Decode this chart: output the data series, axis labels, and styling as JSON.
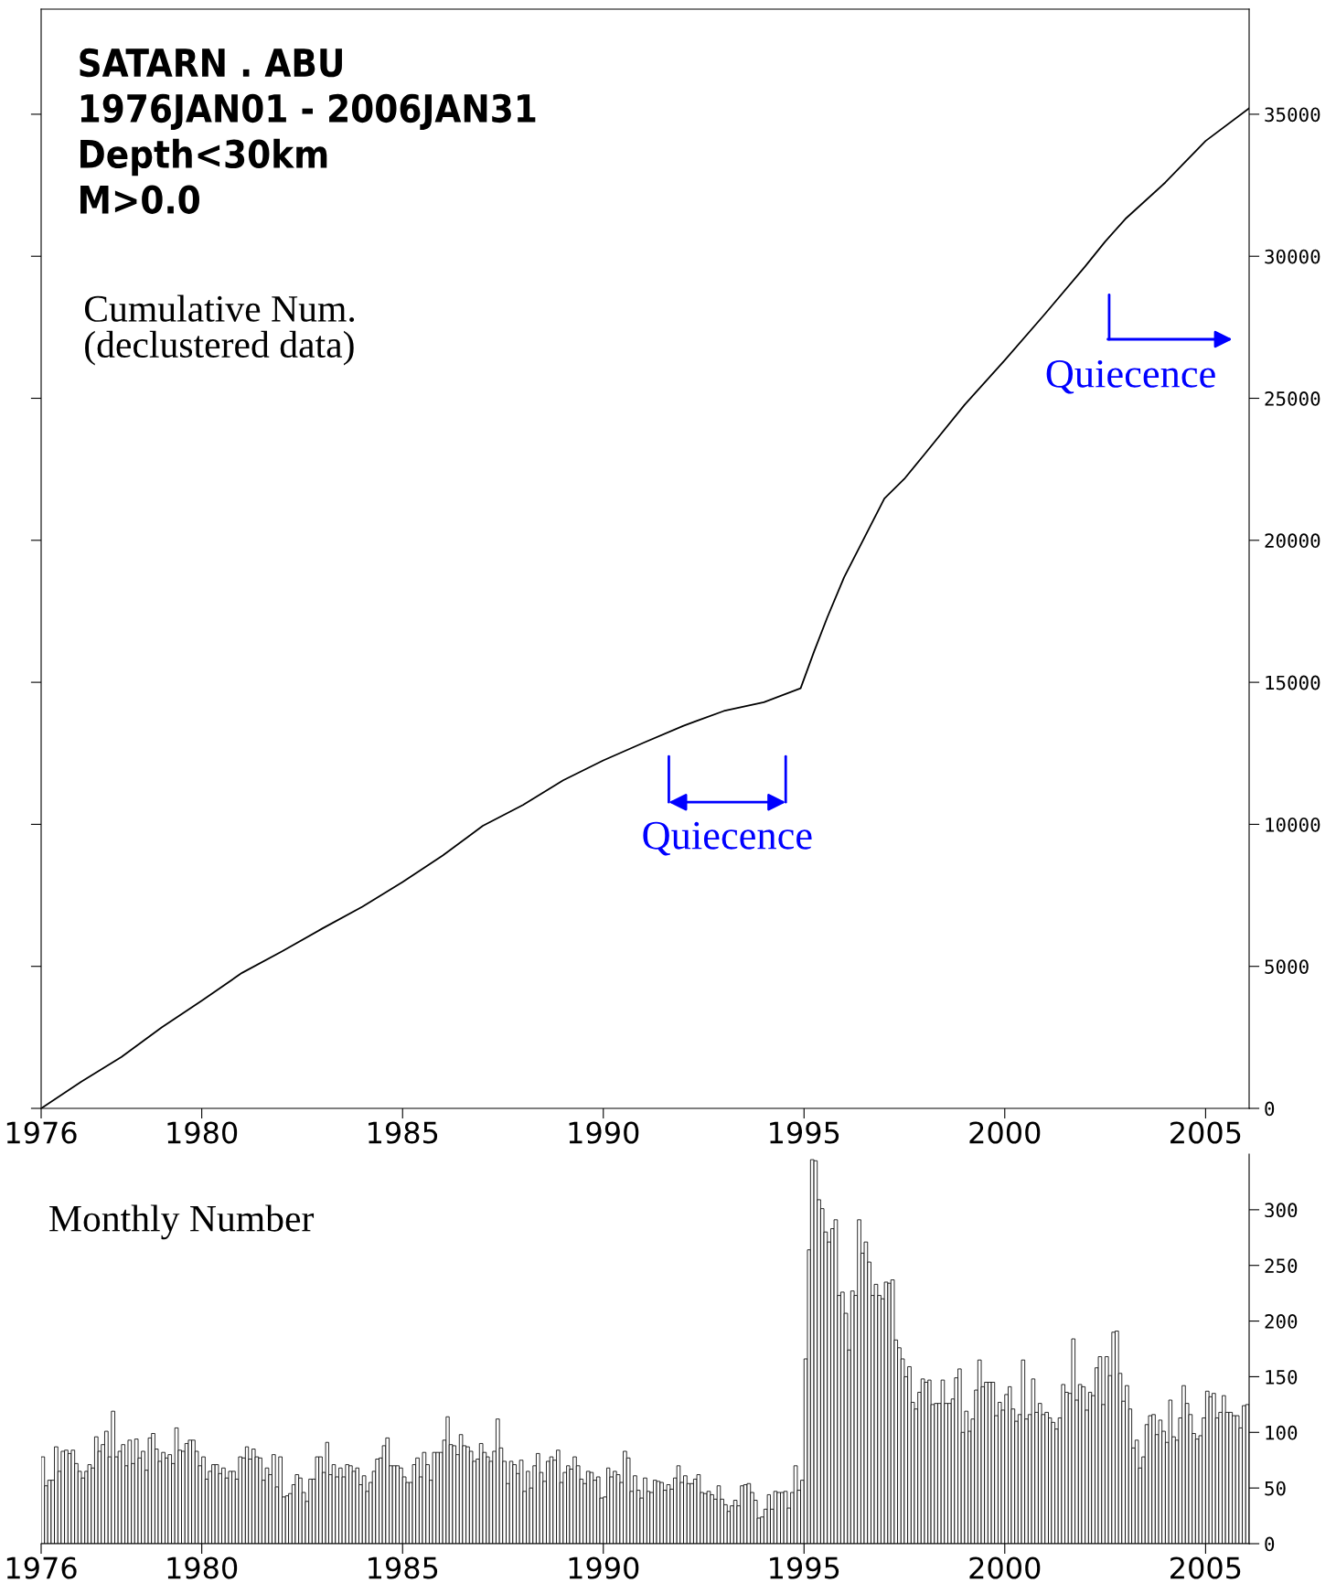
{
  "chart_data": [
    {
      "type": "line",
      "annotations": [
        "SATARN . ABU",
        "1976JAN01 - 2006JAN31",
        "Depth<30km",
        "M>0.0",
        "Cumulative Num.\n(declustered data)",
        "Quiecence",
        "Quiecence"
      ],
      "series": [
        {
          "color": "#000000",
          "x": [
            "1976-01",
            "1977-01",
            "1978-01",
            "1979-01",
            "1980-01",
            "1981-01",
            "1982-01",
            "1983-01",
            "1984-01",
            "1985-01",
            "1986-01",
            "1987-01",
            "1988-01",
            "1989-01",
            "1990-01",
            "1991-01",
            "1992-01",
            "1993-01",
            "1994-01",
            "1994-12",
            "1995-04",
            "1995-08",
            "1996-01",
            "1996-07",
            "1997-01",
            "1997-07",
            "1998-01",
            "1999-01",
            "2000-01",
            "2001-01",
            "2002-01",
            "2002-07",
            "2003-01",
            "2004-01",
            "2005-01",
            "2006-01-31"
          ],
          "values": [
            0,
            940,
            1810,
            2850,
            3790,
            4770,
            5530,
            6330,
            7100,
            7970,
            8900,
            9950,
            10680,
            11550,
            12250,
            12870,
            13470,
            13990,
            14300,
            14790,
            16070,
            17290,
            18700,
            20080,
            21470,
            22160,
            23030,
            24770,
            26340,
            27970,
            29640,
            30510,
            31310,
            32600,
            34060,
            35210
          ]
        }
      ],
      "xlim": [
        "1976-01",
        "2006-02"
      ],
      "xticks": [
        "1976",
        "1980",
        "1985",
        "1990",
        "1995",
        "2000",
        "2005"
      ],
      "ylim": [
        0,
        38700
      ],
      "yticks": [
        0,
        5000,
        10000,
        15000,
        20000,
        25000,
        30000,
        35000
      ],
      "grid": false,
      "legend": false
    },
    {
      "type": "bar",
      "annotations": [
        "Monthly Number"
      ],
      "x": [
        "1976-01",
        "1976-02",
        "1976-03",
        "1976-04",
        "1976-05",
        "1976-06",
        "1976-07",
        "1976-08",
        "1976-09",
        "1976-10",
        "1976-11",
        "1976-12",
        "1977-01",
        "1977-02",
        "1977-03",
        "1977-04",
        "1977-05",
        "1977-06",
        "1977-07",
        "1977-08",
        "1977-09",
        "1977-10",
        "1977-11",
        "1977-12",
        "1978-01",
        "1978-02",
        "1978-03",
        "1978-04",
        "1978-05",
        "1978-06",
        "1978-07",
        "1978-08",
        "1978-09",
        "1978-10",
        "1978-11",
        "1978-12",
        "1979-01",
        "1979-02",
        "1979-03",
        "1979-04",
        "1979-05",
        "1979-06",
        "1979-07",
        "1979-08",
        "1979-09",
        "1979-10",
        "1979-11",
        "1979-12",
        "1980-01",
        "1980-02",
        "1980-03",
        "1980-04",
        "1980-05",
        "1980-06",
        "1980-07",
        "1980-08",
        "1980-09",
        "1980-10",
        "1980-11",
        "1980-12",
        "1981-01",
        "1981-02",
        "1981-03",
        "1981-04",
        "1981-05",
        "1981-06",
        "1981-07",
        "1981-08",
        "1981-09",
        "1981-10",
        "1981-11",
        "1981-12",
        "1982-01",
        "1982-02",
        "1982-03",
        "1982-04",
        "1982-05",
        "1982-06",
        "1982-07",
        "1982-08",
        "1982-09",
        "1982-10",
        "1982-11",
        "1982-12",
        "1983-01",
        "1983-02",
        "1983-03",
        "1983-04",
        "1983-05",
        "1983-06",
        "1983-07",
        "1983-08",
        "1983-09",
        "1983-10",
        "1983-11",
        "1983-12",
        "1984-01",
        "1984-02",
        "1984-03",
        "1984-04",
        "1984-05",
        "1984-06",
        "1984-07",
        "1984-08",
        "1984-09",
        "1984-10",
        "1984-11",
        "1984-12",
        "1985-01",
        "1985-02",
        "1985-03",
        "1985-04",
        "1985-05",
        "1985-06",
        "1985-07",
        "1985-08",
        "1985-09",
        "1985-10",
        "1985-11",
        "1985-12",
        "1986-01",
        "1986-02",
        "1986-03",
        "1986-04",
        "1986-05",
        "1986-06",
        "1986-07",
        "1986-08",
        "1986-09",
        "1986-10",
        "1986-11",
        "1986-12",
        "1987-01",
        "1987-02",
        "1987-03",
        "1987-04",
        "1987-05",
        "1987-06",
        "1987-07",
        "1987-08",
        "1987-09",
        "1987-10",
        "1987-11",
        "1987-12",
        "1988-01",
        "1988-02",
        "1988-03",
        "1988-04",
        "1988-05",
        "1988-06",
        "1988-07",
        "1988-08",
        "1988-09",
        "1988-10",
        "1988-11",
        "1988-12",
        "1989-01",
        "1989-02",
        "1989-03",
        "1989-04",
        "1989-05",
        "1989-06",
        "1989-07",
        "1989-08",
        "1989-09",
        "1989-10",
        "1989-11",
        "1989-12",
        "1990-01",
        "1990-02",
        "1990-03",
        "1990-04",
        "1990-05",
        "1990-06",
        "1990-07",
        "1990-08",
        "1990-09",
        "1990-10",
        "1990-11",
        "1990-12",
        "1991-01",
        "1991-02",
        "1991-03",
        "1991-04",
        "1991-05",
        "1991-06",
        "1991-07",
        "1991-08",
        "1991-09",
        "1991-10",
        "1991-11",
        "1991-12",
        "1992-01",
        "1992-02",
        "1992-03",
        "1992-04",
        "1992-05",
        "1992-06",
        "1992-07",
        "1992-08",
        "1992-09",
        "1992-10",
        "1992-11",
        "1992-12",
        "1993-01",
        "1993-02",
        "1993-03",
        "1993-04",
        "1993-05",
        "1993-06",
        "1993-07",
        "1993-08",
        "1993-09",
        "1993-10",
        "1993-11",
        "1993-12",
        "1994-01",
        "1994-02",
        "1994-03",
        "1994-04",
        "1994-05",
        "1994-06",
        "1994-07",
        "1994-08",
        "1994-09",
        "1994-10",
        "1994-11",
        "1994-12",
        "1995-01",
        "1995-02",
        "1995-03",
        "1995-04",
        "1995-05",
        "1995-06",
        "1995-07",
        "1995-08",
        "1995-09",
        "1995-10",
        "1995-11",
        "1995-12",
        "1996-01",
        "1996-02",
        "1996-03",
        "1996-04",
        "1996-05",
        "1996-06",
        "1996-07",
        "1996-08",
        "1996-09",
        "1996-10",
        "1996-11",
        "1996-12",
        "1997-01",
        "1997-02",
        "1997-03",
        "1997-04",
        "1997-05",
        "1997-06",
        "1997-07",
        "1997-08",
        "1997-09",
        "1997-10",
        "1997-11",
        "1997-12",
        "1998-01",
        "1998-02",
        "1998-03",
        "1998-04",
        "1998-05",
        "1998-06",
        "1998-07",
        "1998-08",
        "1998-09",
        "1998-10",
        "1998-11",
        "1998-12",
        "1999-01",
        "1999-02",
        "1999-03",
        "1999-04",
        "1999-05",
        "1999-06",
        "1999-07",
        "1999-08",
        "1999-09",
        "1999-10",
        "1999-11",
        "1999-12",
        "2000-01",
        "2000-02",
        "2000-03",
        "2000-04",
        "2000-05",
        "2000-06",
        "2000-07",
        "2000-08",
        "2000-09",
        "2000-10",
        "2000-11",
        "2000-12",
        "2001-01",
        "2001-02",
        "2001-03",
        "2001-04",
        "2001-05",
        "2001-06",
        "2001-07",
        "2001-08",
        "2001-09",
        "2001-10",
        "2001-11",
        "2001-12",
        "2002-01",
        "2002-02",
        "2002-03",
        "2002-04",
        "2002-05",
        "2002-06",
        "2002-07",
        "2002-08",
        "2002-09",
        "2002-10",
        "2002-11",
        "2002-12",
        "2003-01",
        "2003-02",
        "2003-03",
        "2003-04",
        "2003-05",
        "2003-06",
        "2003-07",
        "2003-08",
        "2003-09",
        "2003-10",
        "2003-11",
        "2003-12",
        "2004-01",
        "2004-02",
        "2004-03",
        "2004-04",
        "2004-05",
        "2004-06",
        "2004-07",
        "2004-08",
        "2004-09",
        "2004-10",
        "2004-11",
        "2004-12",
        "2005-01",
        "2005-02",
        "2005-03",
        "2005-04",
        "2005-05",
        "2005-06",
        "2005-07",
        "2005-08",
        "2005-09",
        "2005-10",
        "2005-11",
        "2005-12",
        "2006-01"
      ],
      "series": [
        {
          "color": "#ffffff",
          "values": [
            78,
            52,
            57,
            57,
            87,
            65,
            83,
            84,
            81,
            84,
            72,
            65,
            59,
            65,
            71,
            68,
            96,
            83,
            89,
            101,
            78,
            119,
            78,
            83,
            89,
            70,
            93,
            72,
            94,
            77,
            83,
            66,
            95,
            99,
            85,
            74,
            82,
            77,
            80,
            72,
            104,
            84,
            83,
            90,
            93,
            93,
            83,
            70,
            78,
            58,
            65,
            71,
            71,
            63,
            68,
            59,
            65,
            65,
            58,
            78,
            77,
            87,
            76,
            85,
            78,
            77,
            57,
            68,
            62,
            80,
            51,
            78,
            42,
            43,
            45,
            53,
            62,
            59,
            46,
            38,
            58,
            58,
            78,
            78,
            64,
            91,
            62,
            71,
            60,
            68,
            60,
            71,
            70,
            65,
            68,
            53,
            61,
            47,
            55,
            65,
            76,
            77,
            88,
            95,
            70,
            70,
            70,
            68,
            60,
            55,
            55,
            71,
            77,
            60,
            82,
            71,
            57,
            82,
            82,
            82,
            93,
            114,
            89,
            88,
            80,
            98,
            88,
            87,
            83,
            74,
            76,
            90,
            82,
            78,
            74,
            83,
            112,
            86,
            74,
            54,
            74,
            71,
            63,
            75,
            47,
            65,
            50,
            70,
            81,
            64,
            56,
            74,
            78,
            75,
            84,
            55,
            64,
            70,
            67,
            78,
            70,
            58,
            54,
            65,
            64,
            57,
            60,
            41,
            42,
            68,
            60,
            65,
            62,
            55,
            83,
            77,
            47,
            61,
            48,
            41,
            59,
            47,
            46,
            57,
            56,
            55,
            48,
            53,
            49,
            59,
            70,
            55,
            61,
            54,
            54,
            58,
            62,
            46,
            45,
            47,
            44,
            40,
            52,
            40,
            35,
            29,
            34,
            39,
            34,
            52,
            53,
            54,
            46,
            39,
            23,
            24,
            31,
            44,
            31,
            47,
            46,
            46,
            47,
            32,
            46,
            70,
            48,
            57,
            166,
            264,
            345,
            344,
            309,
            301,
            280,
            271,
            283,
            291,
            223,
            226,
            207,
            174,
            227,
            223,
            291,
            261,
            271,
            253,
            223,
            233,
            223,
            220,
            235,
            234,
            237,
            183,
            176,
            166,
            150,
            159,
            127,
            121,
            136,
            148,
            145,
            147,
            125,
            126,
            126,
            147,
            126,
            126,
            130,
            149,
            157,
            100,
            119,
            101,
            112,
            138,
            165,
            141,
            145,
            145,
            145,
            115,
            127,
            120,
            134,
            141,
            121,
            110,
            116,
            165,
            112,
            116,
            148,
            118,
            126,
            116,
            118,
            113,
            109,
            103,
            113,
            143,
            136,
            135,
            184,
            129,
            143,
            141,
            120,
            136,
            133,
            158,
            168,
            125,
            168,
            151,
            190,
            191,
            153,
            128,
            142,
            121,
            86,
            93,
            68,
            78,
            107,
            115,
            116,
            98,
            111,
            101,
            91,
            129,
            96,
            93,
            113,
            142,
            126,
            116,
            99,
            94,
            97,
            113,
            137,
            132,
            135,
            113,
            118,
            133,
            118,
            118,
            115,
            115,
            104,
            124,
            125
          ]
        }
      ],
      "xlim": [
        "1976-01",
        "2006-02"
      ],
      "xticks": [
        "1976",
        "1980",
        "1985",
        "1990",
        "1995",
        "2000",
        "2005"
      ],
      "ylim": [
        0,
        350
      ],
      "yticks": [
        0,
        50,
        100,
        150,
        200,
        250,
        300
      ],
      "grid": false,
      "legend": false
    }
  ]
}
